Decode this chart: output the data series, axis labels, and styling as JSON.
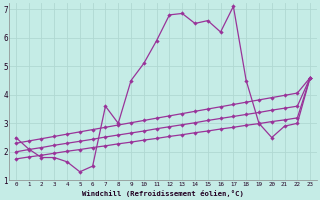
{
  "xlabel": "Windchill (Refroidissement éolien,°C)",
  "xlim": [
    -0.5,
    23.5
  ],
  "ylim": [
    1,
    7.2
  ],
  "xticks": [
    0,
    1,
    2,
    3,
    4,
    5,
    6,
    7,
    8,
    9,
    10,
    11,
    12,
    13,
    14,
    15,
    16,
    17,
    18,
    19,
    20,
    21,
    22,
    23
  ],
  "yticks": [
    1,
    2,
    3,
    4,
    5,
    6,
    7
  ],
  "bg_color": "#c5ece6",
  "line_color": "#993399",
  "grid_color": "#b0d8d2",
  "series": {
    "main": [
      2.5,
      2.1,
      1.8,
      1.8,
      1.65,
      1.3,
      1.5,
      3.6,
      3.0,
      4.5,
      5.1,
      5.9,
      6.8,
      6.85,
      6.5,
      6.6,
      6.2,
      7.1,
      4.5,
      3.0,
      2.5,
      2.9,
      3.0,
      4.6
    ],
    "line1": [
      2.3,
      2.38,
      2.46,
      2.54,
      2.62,
      2.7,
      2.78,
      2.86,
      2.94,
      3.02,
      3.1,
      3.18,
      3.26,
      3.34,
      3.42,
      3.5,
      3.58,
      3.66,
      3.74,
      3.82,
      3.9,
      3.98,
      4.06,
      4.6
    ],
    "line2": [
      2.0,
      2.08,
      2.15,
      2.23,
      2.3,
      2.37,
      2.44,
      2.52,
      2.59,
      2.66,
      2.73,
      2.81,
      2.88,
      2.95,
      3.02,
      3.1,
      3.17,
      3.24,
      3.31,
      3.38,
      3.46,
      3.53,
      3.6,
      4.6
    ],
    "line3": [
      1.75,
      1.82,
      1.88,
      1.95,
      2.02,
      2.08,
      2.15,
      2.21,
      2.28,
      2.34,
      2.41,
      2.47,
      2.54,
      2.6,
      2.67,
      2.73,
      2.8,
      2.86,
      2.93,
      2.99,
      3.06,
      3.12,
      3.19,
      4.6
    ]
  }
}
